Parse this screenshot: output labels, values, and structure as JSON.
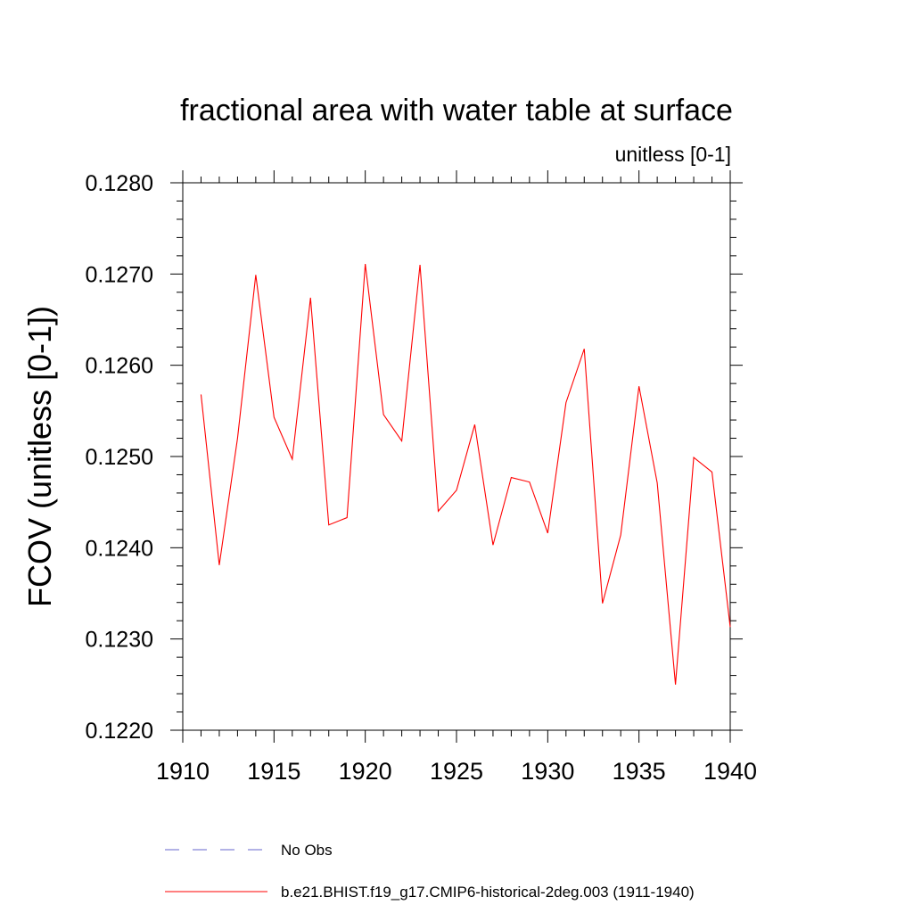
{
  "chart_data": {
    "type": "line",
    "title": "fractional area with water table at surface",
    "subtitle": "unitless [0-1]",
    "xlabel": "",
    "ylabel": "FCOV  (unitless [0-1])",
    "xlim": [
      1910,
      1940
    ],
    "ylim": [
      0.122,
      0.128
    ],
    "x_ticks": [
      1910,
      1915,
      1920,
      1925,
      1930,
      1935,
      1940
    ],
    "y_ticks": [
      0.122,
      0.123,
      0.124,
      0.125,
      0.126,
      0.127,
      0.128
    ],
    "y_tick_labels": [
      "0.1220",
      "0.1230",
      "0.1240",
      "0.1250",
      "0.1260",
      "0.1270",
      "0.1280"
    ],
    "grid": false,
    "legend_position": "bottom",
    "series": [
      {
        "name": "No Obs",
        "color": "#6666cc",
        "style": "dashed",
        "x": [],
        "y": []
      },
      {
        "name": "b.e21.BHIST.f19_g17.CMIP6-historical-2deg.003 (1911-1940)",
        "color": "#ff0000",
        "style": "solid",
        "x": [
          1911,
          1912,
          1913,
          1914,
          1915,
          1916,
          1917,
          1918,
          1919,
          1920,
          1921,
          1922,
          1923,
          1924,
          1925,
          1926,
          1927,
          1928,
          1929,
          1930,
          1931,
          1932,
          1933,
          1934,
          1935,
          1936,
          1937,
          1938,
          1939,
          1940
        ],
        "y": [
          0.12568,
          0.12381,
          0.1252,
          0.12699,
          0.12543,
          0.12497,
          0.12674,
          0.12425,
          0.12433,
          0.12711,
          0.12546,
          0.12517,
          0.1271,
          0.1244,
          0.12463,
          0.12535,
          0.12403,
          0.12477,
          0.12472,
          0.12416,
          0.12559,
          0.12618,
          0.12339,
          0.12414,
          0.12577,
          0.12471,
          0.1225,
          0.12499,
          0.12483,
          0.12313
        ]
      }
    ]
  }
}
